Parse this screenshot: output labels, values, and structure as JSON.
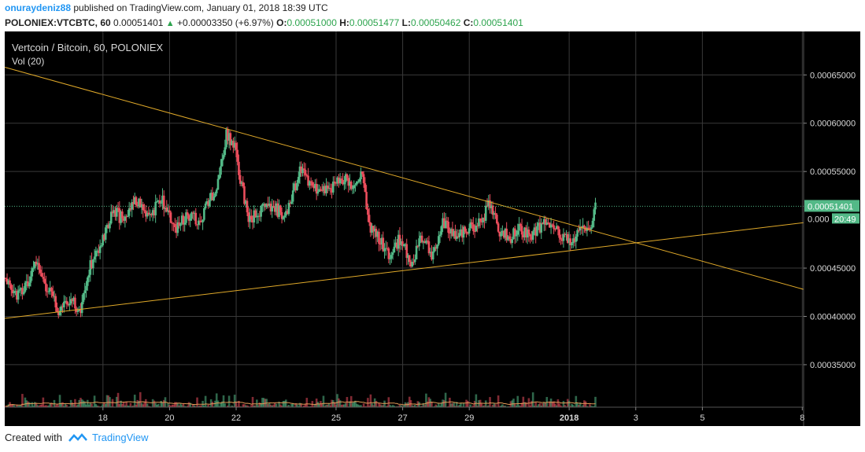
{
  "header": {
    "username": "onuraydeniz88",
    "published": "published on TradingView.com, January 01, 2018 18:39 UTC",
    "symbol": "POLONIEX:VTCBTC, 60",
    "last": "0.00051401",
    "change": "+0.00003350 (+6.97%)",
    "o_label": "O:",
    "o": "0.00051000",
    "h_label": "H:",
    "h": "0.00051477",
    "l_label": "L:",
    "l": "0.00050462",
    "c_label": "C:",
    "c": "0.00051401"
  },
  "footer": {
    "created_with": "Created with",
    "brand": "TradingView"
  },
  "colors": {
    "up": "#53b987",
    "down": "#eb4d5c",
    "trendline": "#e0a929",
    "volume_ma": "#e39a57",
    "grid": "#3a3a3a",
    "background": "#000000",
    "last_price_bg": "#53b987"
  },
  "chart_data": {
    "type": "candlestick",
    "title": "Vertcoin / Bitcoin, 60, POLONIEX",
    "indicator": "Vol (20)",
    "y_ticks": [
      "0.00065000",
      "0.00060000",
      "0.00055000",
      "0.00045000",
      "0.00040000",
      "0.00035000"
    ],
    "y_tick_values": [
      0.00065,
      0.0006,
      0.00055,
      0.00045,
      0.0004,
      0.00035
    ],
    "ylim": [
      0.000306,
      0.000695
    ],
    "x_ticks": [
      "18",
      "20",
      "22",
      "25",
      "27",
      "29",
      "2018",
      "3",
      "5",
      "8"
    ],
    "x_tick_days": [
      4,
      6,
      8,
      11,
      13,
      15,
      18,
      20,
      22,
      25
    ],
    "x_tick_bold": [
      false,
      false,
      false,
      false,
      false,
      false,
      true,
      false,
      false,
      false
    ],
    "xlim_days": [
      1.05,
      25.04
    ],
    "last_price_label": "0.00051401",
    "countdown_label": "20:49",
    "countdown_label_prefix": "0.000",
    "price_anchors": [
      [
        1.08,
        0.00044
      ],
      [
        1.4,
        0.00042
      ],
      [
        1.8,
        0.00044
      ],
      [
        2.0,
        0.00046
      ],
      [
        2.3,
        0.00043
      ],
      [
        2.7,
        0.000405
      ],
      [
        3.0,
        0.00042
      ],
      [
        3.3,
        0.000405
      ],
      [
        3.6,
        0.00045
      ],
      [
        4.0,
        0.00048
      ],
      [
        4.3,
        0.00051
      ],
      [
        4.6,
        0.0005
      ],
      [
        5.0,
        0.00052
      ],
      [
        5.4,
        0.000505
      ],
      [
        5.8,
        0.00052
      ],
      [
        6.2,
        0.00049
      ],
      [
        6.5,
        0.000505
      ],
      [
        6.9,
        0.0005
      ],
      [
        7.2,
        0.00052
      ],
      [
        7.5,
        0.00054
      ],
      [
        7.7,
        0.00059
      ],
      [
        7.95,
        0.000575
      ],
      [
        8.2,
        0.00053
      ],
      [
        8.4,
        0.0005
      ],
      [
        8.8,
        0.00051
      ],
      [
        9.2,
        0.00051
      ],
      [
        9.5,
        0.000505
      ],
      [
        9.9,
        0.00055
      ],
      [
        10.1,
        0.000545
      ],
      [
        10.4,
        0.00053
      ],
      [
        10.8,
        0.00053
      ],
      [
        11.1,
        0.000545
      ],
      [
        11.5,
        0.000535
      ],
      [
        11.8,
        0.000545
      ],
      [
        12.0,
        0.00049
      ],
      [
        12.3,
        0.00048
      ],
      [
        12.6,
        0.000465
      ],
      [
        12.9,
        0.00048
      ],
      [
        13.3,
        0.000455
      ],
      [
        13.6,
        0.000485
      ],
      [
        13.9,
        0.00046
      ],
      [
        14.2,
        0.000495
      ],
      [
        14.6,
        0.000485
      ],
      [
        15.0,
        0.00049
      ],
      [
        15.3,
        0.000495
      ],
      [
        15.6,
        0.000515
      ],
      [
        15.9,
        0.00049
      ],
      [
        16.2,
        0.00048
      ],
      [
        16.5,
        0.00049
      ],
      [
        16.9,
        0.000485
      ],
      [
        17.2,
        0.000495
      ],
      [
        17.6,
        0.00049
      ],
      [
        18.0,
        0.000475
      ],
      [
        18.3,
        0.00049
      ],
      [
        18.5,
        0.000495
      ],
      [
        18.6,
        0.000488
      ],
      [
        18.8,
        0.000514
      ]
    ],
    "trendlines": [
      {
        "from": [
          1.05,
          0.000658
        ],
        "to": [
          25.04,
          0.000428
        ]
      },
      {
        "from": [
          1.05,
          0.000398
        ],
        "to": [
          25.04,
          0.000497
        ]
      }
    ],
    "volume_label": "Volume"
  }
}
